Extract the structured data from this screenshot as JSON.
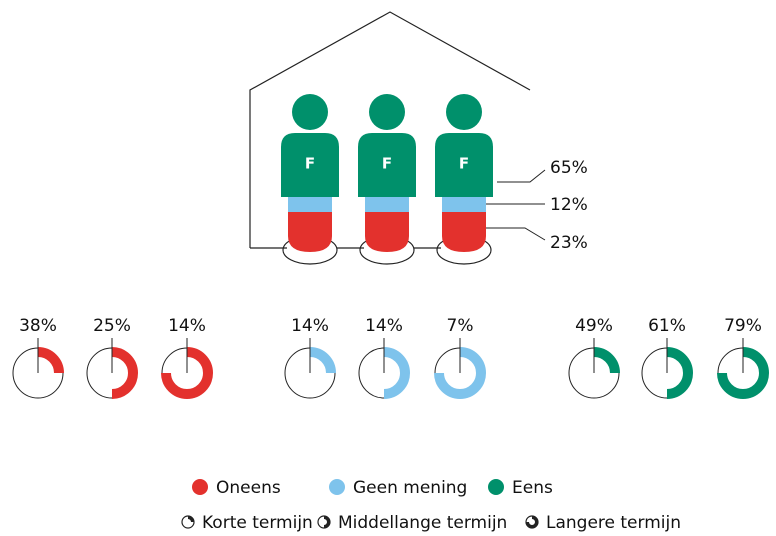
{
  "house": {
    "labels": [
      "65%",
      "12%",
      "23%"
    ],
    "letter": "F"
  },
  "groups": [
    {
      "name": "Oneens",
      "color": "#e3312d",
      "labels": [
        "38%",
        "25%",
        "14%"
      ]
    },
    {
      "name": "Geen mening",
      "color": "#7ec3ec",
      "labels": [
        "14%",
        "14%",
        "7%"
      ]
    },
    {
      "name": "Eens",
      "color": "#00906b",
      "labels": [
        "49%",
        "61%",
        "79%"
      ]
    }
  ],
  "terms": [
    "Korte termijn",
    "Middellange termijn",
    "Langere termijn"
  ]
}
